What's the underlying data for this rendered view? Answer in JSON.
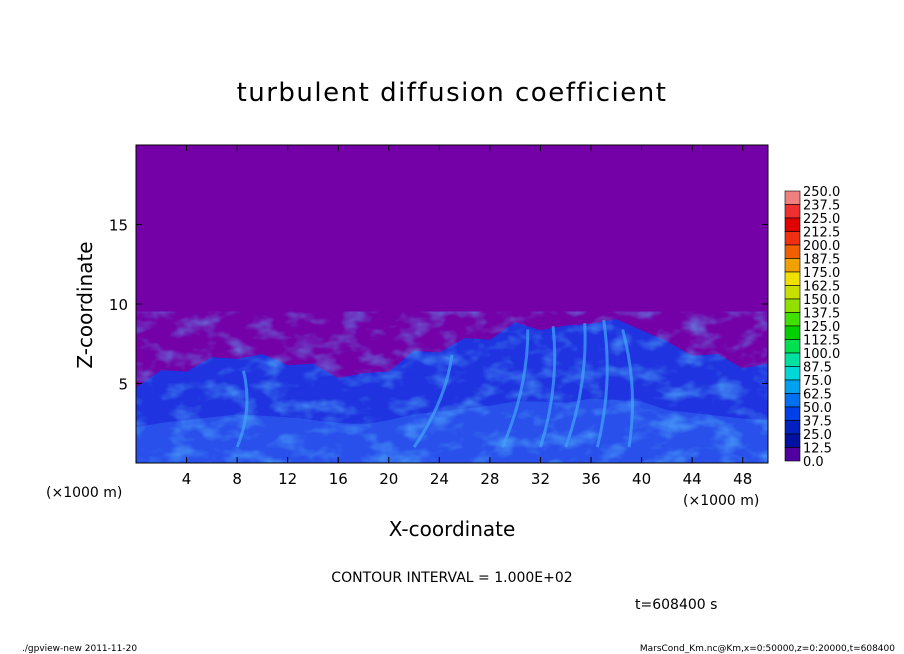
{
  "chart_data": {
    "type": "heatmap",
    "title": "turbulent diffusion coefficient",
    "xlabel": "X-coordinate",
    "ylabel": "Z-coordinate",
    "x_unit": "(×1000 m)",
    "y_unit": "(×1000 m)",
    "xlim": [
      0,
      50
    ],
    "ylim": [
      0,
      20
    ],
    "xticks": [
      4,
      8,
      12,
      16,
      20,
      24,
      28,
      32,
      36,
      40,
      44,
      48
    ],
    "yticks": [
      5,
      10,
      15
    ],
    "colorbar": {
      "levels": [
        "250.0",
        "237.5",
        "225.0",
        "212.5",
        "200.0",
        "187.5",
        "175.0",
        "162.5",
        "150.0",
        "137.5",
        "125.0",
        "112.5",
        "100.0",
        "87.5",
        "75.0",
        "62.5",
        "50.0",
        "37.5",
        "25.0",
        "12.5",
        "0.0"
      ],
      "colors": [
        "#f08080",
        "#f03030",
        "#e00000",
        "#f03010",
        "#f06000",
        "#f0a000",
        "#f0e000",
        "#c8e000",
        "#90e000",
        "#40e000",
        "#00d000",
        "#00e050",
        "#00e0a0",
        "#00d8d8",
        "#00a0f0",
        "#0070f0",
        "#0040e8",
        "#0020c0",
        "#0010a0",
        "#5000a0"
      ]
    },
    "annotations": {
      "contour_interval": "CONTOUR INTERVAL = 1.000E+02",
      "time": "t=608400 s",
      "footer_left": "./gpview-new   2011-11-20",
      "footer_right": "MarsCond_Km.nc@Km,x=0:50000,z=0:20000,t=608400"
    },
    "field_profile": {
      "x": [
        0,
        2,
        4,
        6,
        8,
        10,
        12,
        14,
        16,
        18,
        20,
        22,
        24,
        26,
        28,
        30,
        32,
        34,
        36,
        38,
        40,
        42,
        44,
        46,
        48,
        50
      ],
      "turbulent_top_z": [
        5.0,
        5.6,
        6.0,
        6.4,
        6.8,
        6.6,
        6.4,
        6.0,
        5.6,
        5.4,
        6.0,
        6.8,
        7.2,
        7.6,
        8.0,
        8.6,
        8.6,
        8.4,
        9.0,
        8.8,
        8.6,
        7.4,
        7.0,
        6.6,
        6.2,
        6.0
      ]
    }
  }
}
